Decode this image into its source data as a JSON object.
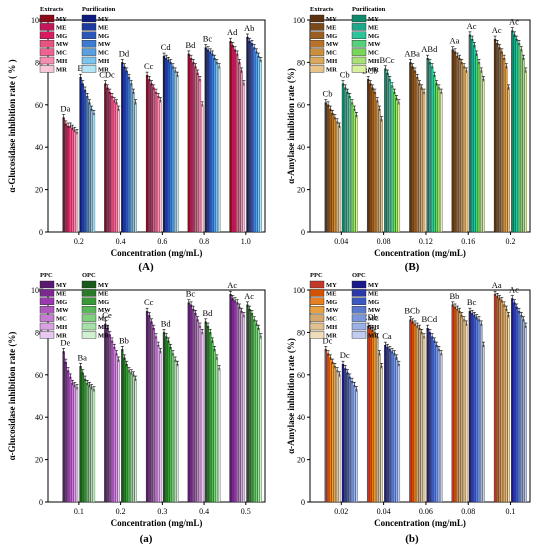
{
  "chart_data": [
    {
      "type": "bar",
      "panel_label": "(A)",
      "ylabel": "α-Glucosidase inhibition rate ( % )",
      "xlabel": "Concentration (mg/mL)",
      "ylim": [
        0,
        100
      ],
      "yticks": [
        0,
        20,
        40,
        60,
        80,
        100
      ],
      "categories": [
        "0.2",
        "0.4",
        "0.6",
        "0.8",
        "1.0"
      ],
      "legend_groups": [
        {
          "title": "Extracts",
          "colors": [
            "#8b0a1a",
            "#c2185b",
            "#d81b60",
            "#e75480",
            "#f06292",
            "#f48fb1",
            "#f8c8d8"
          ]
        },
        {
          "title": "Purification",
          "colors": [
            "#0d1b7a",
            "#1e3a9e",
            "#2a56b8",
            "#3d7bd0",
            "#5aa0e0",
            "#7fc4ec",
            "#b3e5f5"
          ]
        }
      ],
      "legend_items": [
        "MY",
        "ME",
        "MG",
        "MW",
        "MC",
        "MH",
        "MR"
      ],
      "series_groups": [
        {
          "name": "Extracts",
          "values": [
            [
              54,
              51,
              50,
              50,
              49,
              48,
              47
            ],
            [
              70,
              68,
              66,
              64,
              62,
              61,
              58
            ],
            [
              74,
              72,
              70,
              68,
              66,
              64,
              62
            ],
            [
              84,
              82,
              80,
              78,
              75,
              72,
              60
            ],
            [
              90,
              88,
              86,
              84,
              80,
              76,
              70
            ]
          ]
        },
        {
          "name": "Purification",
          "values": [
            [
              73,
              70,
              67,
              64,
              61,
              58,
              56
            ],
            [
              80,
              78,
              76,
              73,
              70,
              66,
              61
            ],
            [
              83,
              82,
              81,
              80,
              78,
              76,
              74
            ],
            [
              87,
              86,
              85,
              84,
              82,
              80,
              78
            ],
            [
              92,
              90,
              89,
              87,
              85,
              83,
              81
            ]
          ]
        }
      ],
      "annotations": [
        [
          "Da",
          "Eb"
        ],
        [
          "CDc",
          "Dd"
        ],
        [
          "Cc",
          "Cd"
        ],
        [
          "Bd",
          "Bc"
        ],
        [
          "Ad",
          "Ab"
        ]
      ]
    },
    {
      "type": "bar",
      "panel_label": "(B)",
      "ylabel": "α-Amylase inhibition rate (%)",
      "xlabel": "Concentration (mg/mL)",
      "ylim": [
        0,
        100
      ],
      "yticks": [
        0,
        20,
        40,
        60,
        80,
        100
      ],
      "categories": [
        "0.04",
        "0.08",
        "0.12",
        "0.16",
        "0.2"
      ],
      "legend_groups": [
        {
          "title": "Extracts",
          "colors": [
            "#5a3210",
            "#7a4a1a",
            "#9a5e22",
            "#b8732a",
            "#c98f3e",
            "#d9a85e",
            "#e8c48a"
          ]
        },
        {
          "title": "Purification",
          "colors": [
            "#0e8a6a",
            "#1ea88a",
            "#2ec49a",
            "#56d07a",
            "#7ad65a",
            "#a8e07a",
            "#d8f0a0"
          ]
        }
      ],
      "legend_items": [
        "MY",
        "ME",
        "MG",
        "MW",
        "MC",
        "MH",
        "MR"
      ],
      "series_groups": [
        {
          "name": "Extracts",
          "values": [
            [
              61,
              60,
              58,
              56,
              54,
              52,
              50
            ],
            [
              72,
              70,
              68,
              66,
              62,
              58,
              53
            ],
            [
              80,
              78,
              76,
              73,
              70,
              68,
              66
            ],
            [
              86,
              85,
              83,
              82,
              80,
              78,
              76
            ],
            [
              91,
              89,
              87,
              85,
              82,
              78,
              68
            ]
          ]
        },
        {
          "name": "Purification",
          "values": [
            [
              70,
              68,
              66,
              64,
              61,
              58,
              55
            ],
            [
              77,
              75,
              72,
              69,
              66,
              63,
              61
            ],
            [
              82,
              80,
              78,
              74,
              70,
              68,
              66
            ],
            [
              93,
              91,
              88,
              84,
              80,
              76,
              72
            ],
            [
              95,
              93,
              91,
              89,
              86,
              82,
              76
            ]
          ]
        }
      ],
      "annotations": [
        [
          "Cb",
          "Cb"
        ],
        [
          "BCb",
          "BCc"
        ],
        [
          "ABa",
          "ABd"
        ],
        [
          "Aa",
          "Ac"
        ],
        [
          "Ac",
          "Ac"
        ]
      ]
    },
    {
      "type": "bar",
      "panel_label": "(a)",
      "ylabel": "α-Glucosidase inhibition rate (%)",
      "xlabel": "Concentration (mg/mL)",
      "ylim": [
        0,
        100
      ],
      "yticks": [
        0,
        20,
        40,
        60,
        80,
        100
      ],
      "categories": [
        "0.1",
        "0.2",
        "0.3",
        "0.4",
        "0.5"
      ],
      "legend_groups": [
        {
          "title": "PPC",
          "colors": [
            "#5a1a6e",
            "#7a2a8e",
            "#9a3aae",
            "#b05ac0",
            "#c47ed0",
            "#d6a2e0",
            "#e8c8f0"
          ]
        },
        {
          "title": "OPC",
          "colors": [
            "#1a5a1a",
            "#2a7a2a",
            "#3a9a3a",
            "#5ab85a",
            "#7ed07e",
            "#a6e0a6",
            "#d0f0d0"
          ]
        }
      ],
      "legend_items": [
        "MY",
        "ME",
        "MG",
        "MW",
        "MC",
        "MH",
        "MR"
      ],
      "series_groups": [
        {
          "name": "PPC",
          "values": [
            [
              71,
              66,
              62,
              59,
              56,
              55,
              54
            ],
            [
              84,
              82,
              79,
              76,
              73,
              70,
              67
            ],
            [
              90,
              88,
              85,
              82,
              78,
              74,
              71
            ],
            [
              94,
              93,
              91,
              89,
              86,
              83,
              80
            ],
            [
              98,
              96,
              95,
              94,
              92,
              90,
              88
            ]
          ]
        },
        {
          "name": "OPC",
          "values": [
            [
              64,
              61,
              58,
              56,
              55,
              54,
              53
            ],
            [
              72,
              68,
              65,
              62,
              61,
              60,
              58
            ],
            [
              80,
              78,
              76,
              73,
              70,
              67,
              65
            ],
            [
              85,
              83,
              80,
              76,
              72,
              68,
              63
            ],
            [
              93,
              91,
              89,
              86,
              84,
              82,
              78
            ]
          ]
        }
      ],
      "annotations": [
        [
          "De",
          "Ba"
        ],
        [
          "Ce",
          "Bb"
        ],
        [
          "Cc",
          "Bd"
        ],
        [
          "Bc",
          "Bd"
        ],
        [
          "Ac",
          "Ac"
        ]
      ]
    },
    {
      "type": "bar",
      "panel_label": "(b)",
      "ylabel": "α-Amylase inhibition rate (%)",
      "xlabel": "Concentration (mg/mL)",
      "ylim": [
        0,
        100
      ],
      "yticks": [
        0,
        20,
        40,
        60,
        80,
        100
      ],
      "categories": [
        "0.02",
        "0.04",
        "0.06",
        "0.08",
        "0.1"
      ],
      "legend_groups": [
        {
          "title": "PPC",
          "colors": [
            "#c0392b",
            "#d35400",
            "#e67e22",
            "#e8a040",
            "#d4a86a",
            "#e0c090",
            "#f0dcb8"
          ]
        },
        {
          "title": "OPC",
          "colors": [
            "#1a1a8a",
            "#2a3aa8",
            "#3a5ac0",
            "#5a7ad0",
            "#7a96dc",
            "#9ab0e6",
            "#c0ccf0"
          ]
        }
      ],
      "legend_items": [
        "MY",
        "ME",
        "MG",
        "MW",
        "MC",
        "MH",
        "MR"
      ],
      "series_groups": [
        {
          "name": "PPC",
          "values": [
            [
              72,
              70,
              68,
              66,
              64,
              62,
              60
            ],
            [
              83,
              82,
              81,
              80,
              78,
              70,
              64
            ],
            [
              86,
              85,
              84,
              83,
              82,
              80,
              78
            ],
            [
              93,
              92,
              91,
              90,
              88,
              86,
              84
            ],
            [
              98,
              97,
              96,
              95,
              93,
              91,
              88
            ]
          ]
        },
        {
          "name": "OPC",
          "values": [
            [
              65,
              63,
              61,
              59,
              57,
              55,
              53
            ],
            [
              74,
              73,
              72,
              71,
              70,
              68,
              65
            ],
            [
              82,
              80,
              78,
              76,
              74,
              72,
              70
            ],
            [
              90,
              89,
              88,
              87,
              86,
              84,
              74
            ],
            [
              96,
              94,
              92,
              90,
              88,
              86,
              83
            ]
          ]
        }
      ],
      "annotations": [
        [
          "Dc",
          "Dc"
        ],
        [
          "CDb",
          "Ca"
        ],
        [
          "BCb",
          "BCd"
        ],
        [
          "Bb",
          "Bc"
        ],
        [
          "Aa",
          "Ac"
        ]
      ]
    }
  ]
}
